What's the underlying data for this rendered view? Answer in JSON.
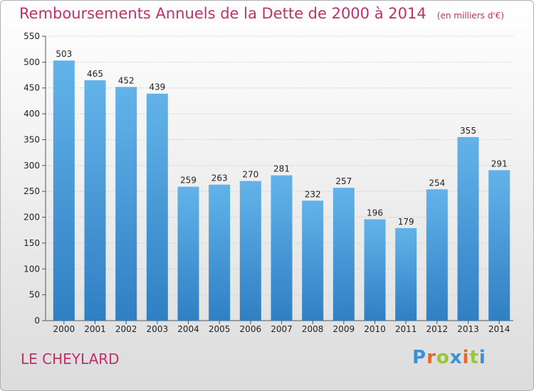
{
  "chart_data": {
    "type": "bar",
    "title": "Remboursements Annuels de la Dette de 2000 à 2014",
    "subtitle": "(en milliers d'€)",
    "categories": [
      "2000",
      "2001",
      "2002",
      "2003",
      "2004",
      "2005",
      "2006",
      "2007",
      "2008",
      "2009",
      "2010",
      "2011",
      "2012",
      "2013",
      "2014"
    ],
    "values": [
      503,
      465,
      452,
      439,
      259,
      263,
      270,
      281,
      232,
      257,
      196,
      179,
      254,
      355,
      291
    ],
    "ylim": [
      0,
      550
    ],
    "yticks": [
      0,
      50,
      100,
      150,
      200,
      250,
      300,
      350,
      400,
      450,
      500,
      550
    ],
    "grid": true,
    "colors": {
      "bar_top": "#63b3ea",
      "bar_bottom": "#2f7fc4",
      "title": "#c0306a"
    }
  },
  "footer": {
    "commune": "LE CHEYLARD",
    "logo": "Proxiti"
  }
}
